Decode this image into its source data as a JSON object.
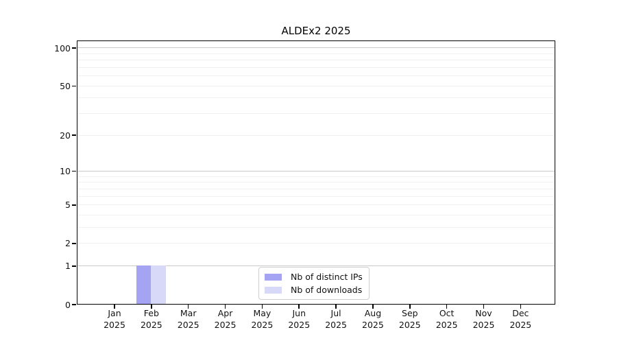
{
  "chart_data": {
    "type": "bar",
    "title": "ALDEx2 2025",
    "categories": [
      "Jan 2025",
      "Feb 2025",
      "Mar 2025",
      "Apr 2025",
      "May 2025",
      "Jun 2025",
      "Jul 2025",
      "Aug 2025",
      "Sep 2025",
      "Oct 2025",
      "Nov 2025",
      "Dec 2025"
    ],
    "series": [
      {
        "name": "Nb of distinct IPs",
        "color": "#a4a4f2",
        "values": [
          0,
          1,
          0,
          0,
          0,
          0,
          0,
          0,
          0,
          0,
          0,
          0
        ]
      },
      {
        "name": "Nb of downloads",
        "color": "#d8d8f8",
        "values": [
          0,
          1,
          0,
          0,
          0,
          0,
          0,
          0,
          0,
          0,
          0,
          0
        ]
      }
    ],
    "yscale": "log1p",
    "ylim": [
      0,
      100
    ],
    "yticks": [
      0,
      1,
      2,
      5,
      10,
      20,
      50,
      100
    ],
    "grid_major": [
      1,
      10,
      100
    ],
    "grid_minor": [
      2,
      3,
      4,
      5,
      6,
      7,
      8,
      9,
      20,
      30,
      40,
      50,
      60,
      70,
      80,
      90
    ],
    "grid": true,
    "legend_position": "inside-bottom-center"
  },
  "colors": {
    "grid_major": "#c9c9c9",
    "grid_minor": "#f0f0f0",
    "spine": "#000000",
    "background": "#ffffff"
  }
}
